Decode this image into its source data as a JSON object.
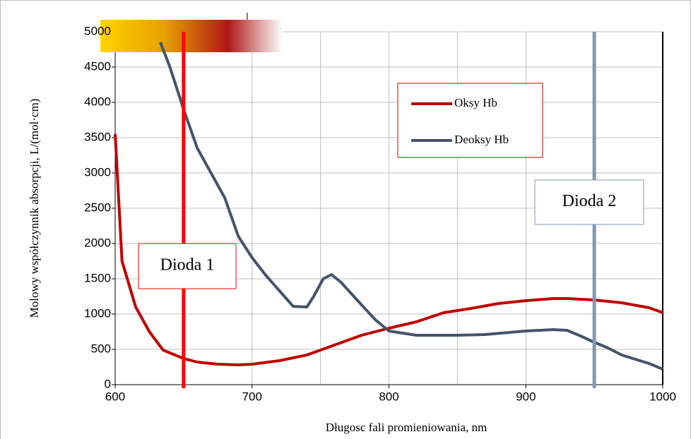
{
  "chart_data": {
    "type": "line",
    "xlabel": "Długosc fali promieniowania, nm",
    "ylabel": "Molowy współczynnik absorpcji, L/(mol·cm)",
    "xlim": [
      600,
      1000
    ],
    "xticks": [
      600,
      700,
      800,
      900,
      1000
    ],
    "xminorticks": [
      650,
      750,
      850,
      950
    ],
    "ylim": [
      0,
      5000
    ],
    "yticks": [
      0,
      500,
      1000,
      1500,
      2000,
      2500,
      3000,
      3500,
      4000,
      4500,
      5000
    ],
    "grid": true,
    "series": [
      {
        "name": "Oksy Hb",
        "color": "#c00000",
        "x": [
          600,
          605,
          615,
          625,
          635,
          650,
          660,
          675,
          690,
          700,
          720,
          740,
          760,
          780,
          800,
          820,
          840,
          860,
          880,
          900,
          920,
          930,
          950,
          970,
          990,
          1000
        ],
        "values": [
          3550,
          1750,
          1100,
          750,
          490,
          370,
          320,
          290,
          280,
          290,
          340,
          420,
          560,
          700,
          800,
          890,
          1020,
          1080,
          1150,
          1190,
          1220,
          1220,
          1200,
          1160,
          1090,
          1020
        ]
      },
      {
        "name": "Deoksy Hb",
        "color": "#44546a",
        "x": [
          633,
          640,
          650,
          660,
          680,
          690,
          700,
          710,
          720,
          730,
          740,
          745,
          752,
          758,
          765,
          780,
          790,
          800,
          820,
          850,
          870,
          900,
          920,
          930,
          940,
          950,
          960,
          970,
          990,
          1000
        ],
        "values": [
          4850,
          4500,
          3900,
          3350,
          2650,
          2100,
          1800,
          1550,
          1330,
          1110,
          1100,
          1250,
          1500,
          1560,
          1450,
          1130,
          920,
          760,
          700,
          700,
          710,
          760,
          780,
          770,
          690,
          600,
          520,
          420,
          300,
          220
        ]
      }
    ],
    "annotations": [
      {
        "text": "Dioda 1",
        "x": 650,
        "color": "#ff0000"
      },
      {
        "text": "Dioda 2",
        "x": 950,
        "color": "#8497b0"
      }
    ]
  }
}
